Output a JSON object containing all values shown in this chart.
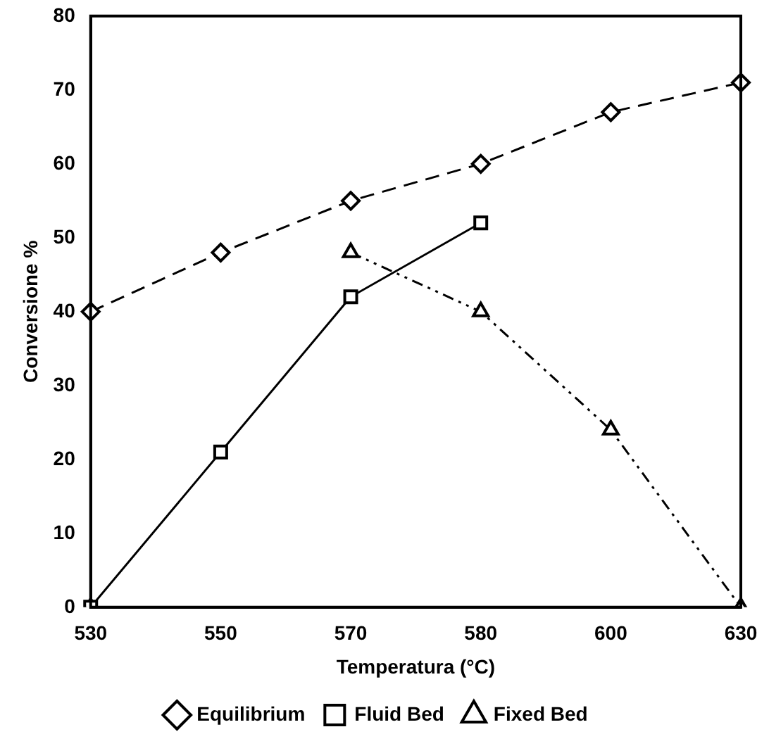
{
  "chart_data": {
    "type": "line",
    "xlabel": "Temperatura (°C)",
    "ylabel": "Conversione %",
    "categories": [
      "530",
      "550",
      "570",
      "580",
      "600",
      "630"
    ],
    "ylim": [
      0,
      80
    ],
    "yticks": [
      0,
      10,
      20,
      30,
      40,
      50,
      60,
      70,
      80
    ],
    "grid": false,
    "legend": "bottom",
    "series": [
      {
        "name": "Equilibrium",
        "color": "#000000",
        "marker": "diamond",
        "line_style": "dashed",
        "values": [
          40,
          48,
          55,
          60,
          67,
          71
        ]
      },
      {
        "name": "Fluid Bed",
        "color": "#000000",
        "marker": "square",
        "line_style": "solid",
        "values": [
          0,
          21,
          42,
          52,
          null,
          null
        ]
      },
      {
        "name": "Fixed Bed",
        "color": "#000000",
        "marker": "triangle",
        "line_style": "dashdot",
        "values": [
          0,
          null,
          48,
          40,
          24,
          0
        ]
      }
    ]
  }
}
